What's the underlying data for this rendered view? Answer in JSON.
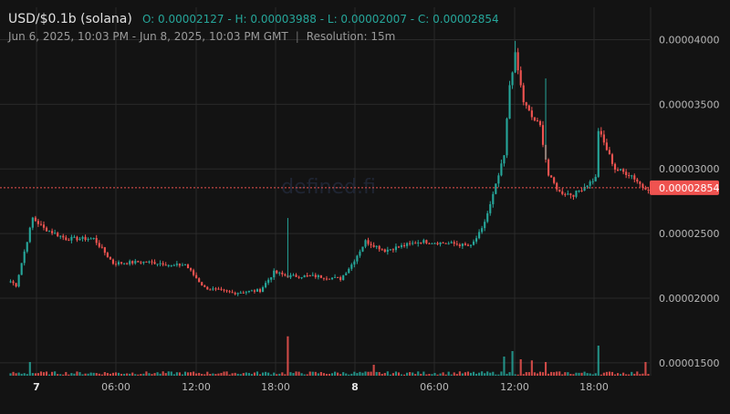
{
  "header": {
    "symbol": "USD/$0.1b (solana)",
    "ohlc": "O: 0.00002127 - H: 0.00003988 - L: 0.00002007 - C: 0.00002854",
    "range": "Jun 6, 2025, 10:03 PM - Jun 8, 2025, 10:03 PM GMT",
    "separator": "|",
    "resolution": "Resolution: 15m"
  },
  "watermark": "defined.fi",
  "colors": {
    "up": "#26a69a",
    "down": "#ef5350",
    "grid": "#2a2a2a",
    "background": "#131313"
  },
  "chart_data": {
    "type": "candlestick",
    "y_axis": {
      "ticks": [
        {
          "value": 4e-05,
          "label": "0.00004000"
        },
        {
          "value": 3.5e-05,
          "label": "0.00003500"
        },
        {
          "value": 3e-05,
          "label": "0.00003000"
        },
        {
          "value": 2.5e-05,
          "label": "0.00002500"
        },
        {
          "value": 2e-05,
          "label": "0.00002000"
        },
        {
          "value": 1.5e-05,
          "label": "0.00001500"
        }
      ],
      "range": [
        1.4e-05,
        4.25e-05
      ]
    },
    "x_axis": {
      "ticks": [
        {
          "label": "7",
          "bold": true
        },
        {
          "label": "06:00",
          "bold": false
        },
        {
          "label": "12:00",
          "bold": false
        },
        {
          "label": "18:00",
          "bold": false
        },
        {
          "label": "8",
          "bold": true
        },
        {
          "label": "06:00",
          "bold": false
        },
        {
          "label": "12:00",
          "bold": false
        },
        {
          "label": "18:00",
          "bold": false
        }
      ]
    },
    "current_price": {
      "value": 2.854e-05,
      "label": "0.00002854"
    },
    "anchors": [
      [
        0,
        2.13e-05
      ],
      [
        2,
        2.1e-05
      ],
      [
        5,
        2.36e-05
      ],
      [
        8,
        2.62e-05
      ],
      [
        12,
        2.54e-05
      ],
      [
        20,
        2.46e-05
      ],
      [
        30,
        2.46e-05
      ],
      [
        33,
        2.38e-05
      ],
      [
        37,
        2.27e-05
      ],
      [
        48,
        2.28e-05
      ],
      [
        55,
        2.27e-05
      ],
      [
        58,
        2.25e-05
      ],
      [
        63,
        2.26e-05
      ],
      [
        66,
        2.18e-05
      ],
      [
        70,
        2.08e-05
      ],
      [
        80,
        2.04e-05
      ],
      [
        90,
        2.06e-05
      ],
      [
        95,
        2.2e-05
      ],
      [
        100,
        2.17e-05
      ],
      [
        110,
        2.17e-05
      ],
      [
        119,
        2.15e-05
      ],
      [
        123,
        2.26e-05
      ],
      [
        128,
        2.44e-05
      ],
      [
        135,
        2.37e-05
      ],
      [
        148,
        2.44e-05
      ],
      [
        160,
        2.42e-05
      ],
      [
        166,
        2.4e-05
      ],
      [
        170,
        2.53e-05
      ],
      [
        173,
        2.72e-05
      ],
      [
        178,
        3.1e-05
      ],
      [
        180,
        3.65e-05
      ],
      [
        182,
        3.88e-05
      ],
      [
        185,
        3.52e-05
      ],
      [
        188,
        3.4e-05
      ],
      [
        191,
        3.33e-05
      ],
      [
        194,
        2.95e-05
      ],
      [
        198,
        2.82e-05
      ],
      [
        203,
        2.8e-05
      ],
      [
        208,
        2.88e-05
      ],
      [
        211,
        2.93e-05
      ],
      [
        212,
        3.3e-05
      ],
      [
        215,
        3.15e-05
      ],
      [
        218,
        3e-05
      ],
      [
        224,
        2.95e-05
      ],
      [
        228,
        2.86e-05
      ],
      [
        230,
        2.85e-05
      ]
    ],
    "candle_count": 231,
    "volume_spikes": [
      {
        "index": 7,
        "value": 0.25
      },
      {
        "index": 100,
        "value": 0.72
      },
      {
        "index": 131,
        "value": 0.2
      },
      {
        "index": 178,
        "value": 0.35
      },
      {
        "index": 181,
        "value": 0.45
      },
      {
        "index": 184,
        "value": 0.3
      },
      {
        "index": 188,
        "value": 0.28
      },
      {
        "index": 193,
        "value": 0.25
      },
      {
        "index": 212,
        "value": 0.55
      },
      {
        "index": 229,
        "value": 0.25
      }
    ]
  }
}
